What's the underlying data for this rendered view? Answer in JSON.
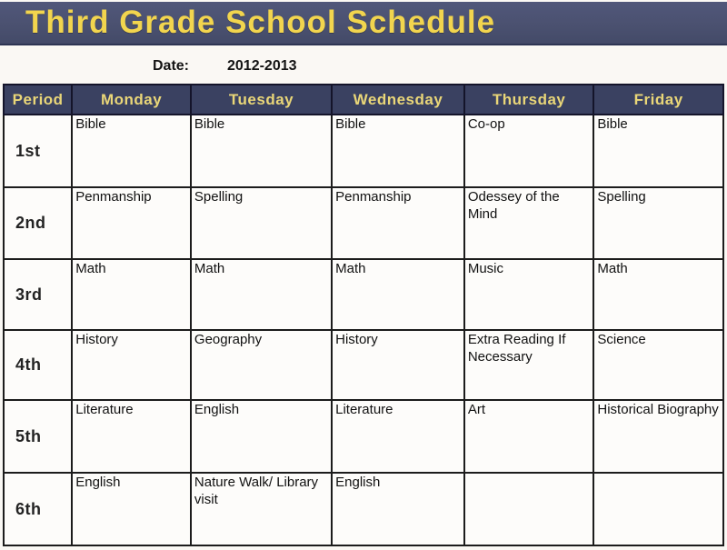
{
  "title": "Third Grade School Schedule",
  "date": {
    "label": "Date:",
    "value": "2012-2013"
  },
  "colors": {
    "title_band_bg": "#4b5170",
    "title_text": "#f2d54e",
    "table_header_bg": "#3a4161",
    "table_header_text": "#e9d678",
    "cell_bg": "#fdfcfa",
    "border": "#1c1c1c"
  },
  "table": {
    "columns": [
      "Period",
      "Monday",
      "Tuesday",
      "Wednesday",
      "Thursday",
      "Friday"
    ],
    "rows": [
      {
        "period": "1st",
        "cells": [
          "Bible",
          "Bible",
          "Bible",
          "Co-op",
          "Bible"
        ]
      },
      {
        "period": "2nd",
        "cells": [
          "Penmanship",
          "Spelling",
          "Penmanship",
          "Odessey of the Mind",
          "Spelling"
        ]
      },
      {
        "period": "3rd",
        "cells": [
          "Math",
          "Math",
          "Math",
          "Music",
          "Math"
        ]
      },
      {
        "period": "4th",
        "cells": [
          "History",
          "Geography",
          "History",
          "Extra Reading If Necessary",
          "Science"
        ]
      },
      {
        "period": "5th",
        "cells": [
          "Literature",
          "English",
          "Literature",
          "Art",
          "Historical Biography"
        ]
      },
      {
        "period": "6th",
        "cells": [
          "English",
          "Nature Walk/ Library visit",
          "English",
          "",
          ""
        ]
      }
    ]
  }
}
